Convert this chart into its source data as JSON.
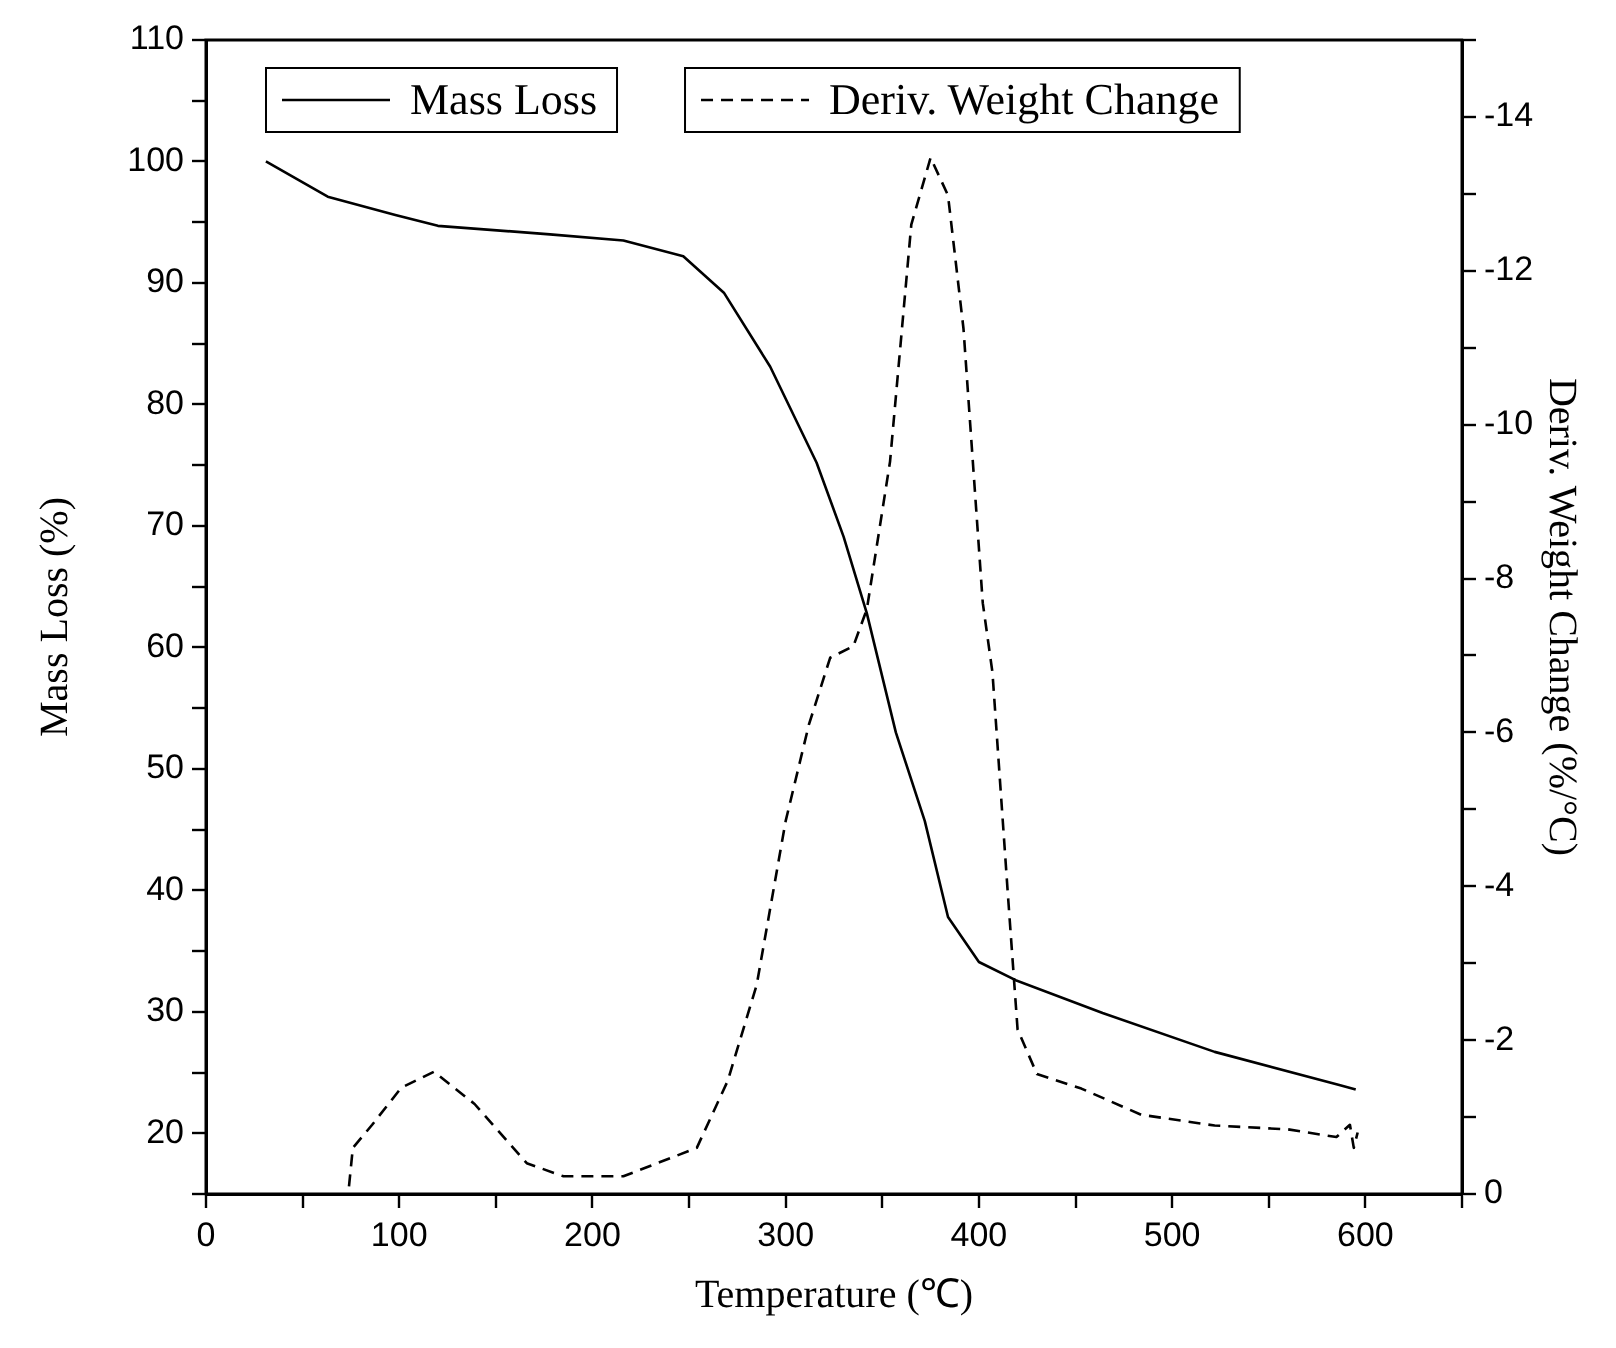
{
  "chart_data": {
    "type": "line",
    "xlabel": "Temperature (℃)",
    "ylabel": "Mass Loss (%)",
    "y2label": "Deriv. Weight Change (%/°C)",
    "xlim": [
      0,
      650
    ],
    "xticks": [
      0,
      {
        "value": 50,
        "label": null
      },
      100,
      {
        "value": 150,
        "label": null
      },
      200,
      {
        "value": 250,
        "label": null
      },
      300,
      {
        "value": 350,
        "label": null
      },
      400,
      {
        "value": 450,
        "label": null
      },
      500,
      {
        "value": 550,
        "label": null
      },
      600,
      {
        "value": 650,
        "label": null
      }
    ],
    "ylim": [
      15,
      110
    ],
    "yticks": [
      {
        "value": 15,
        "label": null
      },
      20,
      {
        "value": 25,
        "label": null
      },
      30,
      {
        "value": 35,
        "label": null
      },
      40,
      {
        "value": 45,
        "label": null
      },
      50,
      {
        "value": 55,
        "label": null
      },
      60,
      {
        "value": 65,
        "label": null
      },
      70,
      {
        "value": 75,
        "label": null
      },
      80,
      {
        "value": 85,
        "label": null
      },
      90,
      {
        "value": 95,
        "label": null
      },
      100,
      {
        "value": 105,
        "label": null
      },
      110
    ],
    "y2lim": [
      0,
      -15
    ],
    "y2ticks": [
      0,
      {
        "value": -1,
        "label": null
      },
      -2,
      {
        "value": -3,
        "label": null
      },
      -4,
      {
        "value": -5,
        "label": null
      },
      -6,
      {
        "value": -7,
        "label": null
      },
      -8,
      {
        "value": -9,
        "label": null
      },
      -10,
      {
        "value": -11,
        "label": null
      },
      -12,
      {
        "value": -13,
        "label": null
      },
      -14,
      {
        "value": -15,
        "label": null
      }
    ],
    "legend": "top",
    "marker": "none",
    "grid": false,
    "series": [
      {
        "name": "Mass Loss",
        "color": "#000000",
        "line_style": "solid",
        "x": [
          31,
          63,
          98,
          120,
          178,
          216,
          247,
          268,
          292,
          316,
          330,
          342,
          357,
          372,
          384,
          400,
          419,
          464,
          522,
          586,
          595
        ],
        "values": [
          100,
          97.1,
          95.6,
          94.7,
          94.0,
          93.5,
          92.2,
          89.2,
          83.1,
          75.2,
          69.1,
          62.8,
          53.0,
          45.7,
          37.8,
          34.1,
          32.6,
          29.9,
          26.7,
          24.0,
          23.6
        ]
      },
      {
        "name": "Deriv. Weight Change",
        "color": "#000000",
        "line_style": "dashed",
        "axis": "y2",
        "x": [
          74,
          76,
          86,
          101,
          118,
          139,
          166,
          185,
          216,
          254,
          270,
          285,
          300,
          312,
          323,
          335,
          342,
          354,
          365,
          375,
          384,
          392,
          402,
          407,
          415,
          420,
          430,
          453,
          484,
          522,
          560,
          585,
          592,
          594,
          596
        ],
        "values": [
          -0.1,
          -0.6,
          -0.9,
          -1.38,
          -1.59,
          -1.17,
          -0.4,
          -0.23,
          -0.23,
          -0.6,
          -1.47,
          -2.72,
          -4.85,
          -6.1,
          -6.97,
          -7.12,
          -7.6,
          -9.52,
          -12.6,
          -13.47,
          -12.98,
          -11.25,
          -7.68,
          -6.78,
          -3.89,
          -2.14,
          -1.56,
          -1.37,
          -1.03,
          -0.89,
          -0.84,
          -0.74,
          -0.9,
          -0.6,
          -0.8
        ]
      }
    ]
  }
}
